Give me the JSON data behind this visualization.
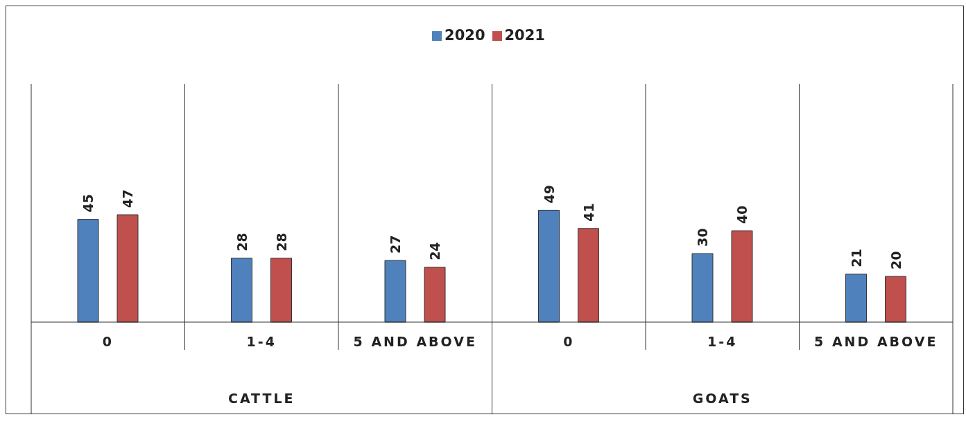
{
  "chart_data": {
    "type": "bar",
    "categories": [
      "0",
      "1-4",
      "5 AND ABOVE",
      "0",
      "1-4",
      "5 AND ABOVE"
    ],
    "series": [
      {
        "name": "2020",
        "color": "#4f81bd",
        "values": [
          45,
          28,
          27,
          49,
          30,
          21
        ]
      },
      {
        "name": "2021",
        "color": "#c0504d",
        "values": [
          47,
          28,
          24,
          41,
          40,
          20
        ]
      }
    ],
    "data_labels": true,
    "legend": "top",
    "grid": "x",
    "annotations": [
      "CATTLE",
      "GOATS"
    ]
  }
}
